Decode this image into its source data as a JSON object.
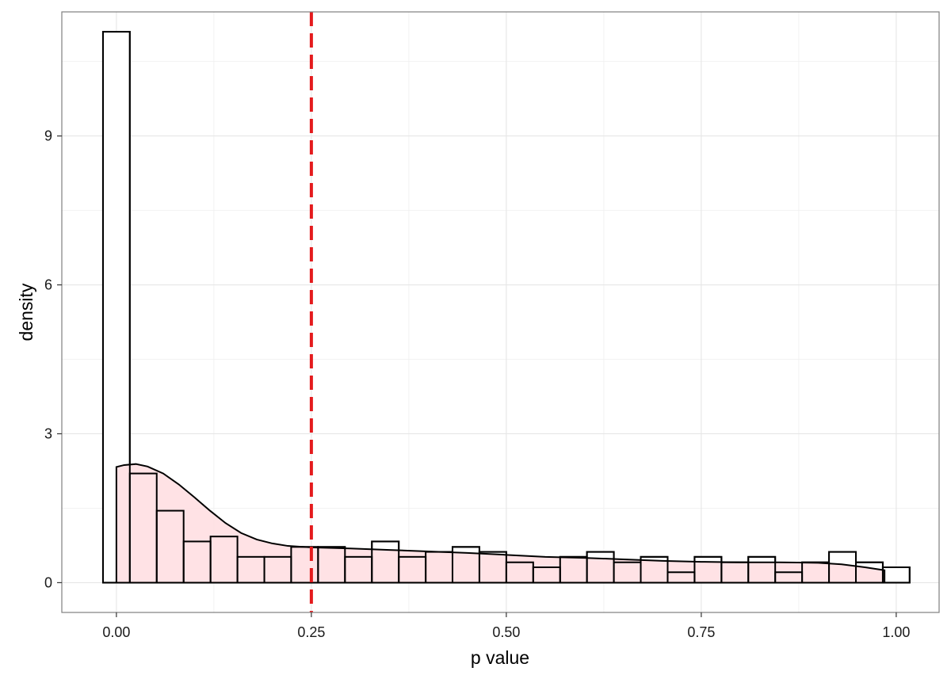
{
  "chart_data": {
    "type": "bar",
    "title": "",
    "xlabel": "p value",
    "ylabel": "density",
    "xlim": [
      -0.07,
      1.055
    ],
    "ylim": [
      -0.6,
      11.5
    ],
    "x_ticks": [
      0.0,
      0.25,
      0.5,
      0.75,
      1.0
    ],
    "x_tick_labels": [
      "0.00",
      "0.25",
      "0.50",
      "0.75",
      "1.00"
    ],
    "y_ticks": [
      0,
      3,
      6,
      9
    ],
    "y_tick_labels": [
      "0",
      "3",
      "6",
      "9"
    ],
    "grid": true,
    "histogram": {
      "bin_width": 0.0345,
      "bins": [
        {
          "x0": -0.0172,
          "x1": 0.0172,
          "density": 11.1
        },
        {
          "x0": 0.0172,
          "x1": 0.0517,
          "density": 2.2
        },
        {
          "x0": 0.0517,
          "x1": 0.0862,
          "density": 1.45
        },
        {
          "x0": 0.0862,
          "x1": 0.1207,
          "density": 0.83
        },
        {
          "x0": 0.1207,
          "x1": 0.1552,
          "density": 0.93
        },
        {
          "x0": 0.1552,
          "x1": 0.1897,
          "density": 0.52
        },
        {
          "x0": 0.1897,
          "x1": 0.2241,
          "density": 0.52
        },
        {
          "x0": 0.2241,
          "x1": 0.2586,
          "density": 0.72
        },
        {
          "x0": 0.2586,
          "x1": 0.2931,
          "density": 0.72
        },
        {
          "x0": 0.2931,
          "x1": 0.3276,
          "density": 0.52
        },
        {
          "x0": 0.3276,
          "x1": 0.3621,
          "density": 0.83
        },
        {
          "x0": 0.3621,
          "x1": 0.3966,
          "density": 0.52
        },
        {
          "x0": 0.3966,
          "x1": 0.431,
          "density": 0.62
        },
        {
          "x0": 0.431,
          "x1": 0.4655,
          "density": 0.72
        },
        {
          "x0": 0.4655,
          "x1": 0.5,
          "density": 0.62
        },
        {
          "x0": 0.5,
          "x1": 0.5345,
          "density": 0.41
        },
        {
          "x0": 0.5345,
          "x1": 0.569,
          "density": 0.31
        },
        {
          "x0": 0.569,
          "x1": 0.6034,
          "density": 0.52
        },
        {
          "x0": 0.6034,
          "x1": 0.6379,
          "density": 0.62
        },
        {
          "x0": 0.6379,
          "x1": 0.6724,
          "density": 0.41
        },
        {
          "x0": 0.6724,
          "x1": 0.7069,
          "density": 0.52
        },
        {
          "x0": 0.7069,
          "x1": 0.7414,
          "density": 0.21
        },
        {
          "x0": 0.7414,
          "x1": 0.7759,
          "density": 0.52
        },
        {
          "x0": 0.7759,
          "x1": 0.8103,
          "density": 0.41
        },
        {
          "x0": 0.8103,
          "x1": 0.8448,
          "density": 0.52
        },
        {
          "x0": 0.8448,
          "x1": 0.8793,
          "density": 0.21
        },
        {
          "x0": 0.8793,
          "x1": 0.9138,
          "density": 0.41
        },
        {
          "x0": 0.9138,
          "x1": 0.9483,
          "density": 0.62
        },
        {
          "x0": 0.9483,
          "x1": 0.9828,
          "density": 0.41
        },
        {
          "x0": 0.9828,
          "x1": 1.0172,
          "density": 0.31
        }
      ],
      "fill": "#ffffff",
      "stroke": "#000000"
    },
    "density_curve": {
      "fill": "#ffdde0",
      "stroke": "#000000",
      "points": [
        [
          0.0,
          2.33
        ],
        [
          0.01,
          2.37
        ],
        [
          0.025,
          2.39
        ],
        [
          0.04,
          2.34
        ],
        [
          0.06,
          2.2
        ],
        [
          0.08,
          1.98
        ],
        [
          0.1,
          1.72
        ],
        [
          0.12,
          1.45
        ],
        [
          0.14,
          1.2
        ],
        [
          0.16,
          1.0
        ],
        [
          0.18,
          0.87
        ],
        [
          0.2,
          0.79
        ],
        [
          0.22,
          0.74
        ],
        [
          0.25,
          0.71
        ],
        [
          0.3,
          0.69
        ],
        [
          0.35,
          0.66
        ],
        [
          0.4,
          0.63
        ],
        [
          0.45,
          0.6
        ],
        [
          0.5,
          0.56
        ],
        [
          0.55,
          0.52
        ],
        [
          0.6,
          0.5
        ],
        [
          0.65,
          0.47
        ],
        [
          0.7,
          0.44
        ],
        [
          0.75,
          0.42
        ],
        [
          0.8,
          0.41
        ],
        [
          0.85,
          0.41
        ],
        [
          0.9,
          0.4
        ],
        [
          0.93,
          0.37
        ],
        [
          0.96,
          0.31
        ],
        [
          0.985,
          0.25
        ]
      ]
    },
    "threshold_line": {
      "x": 0.25,
      "color": "#e41a1c",
      "style": "dashed"
    }
  }
}
